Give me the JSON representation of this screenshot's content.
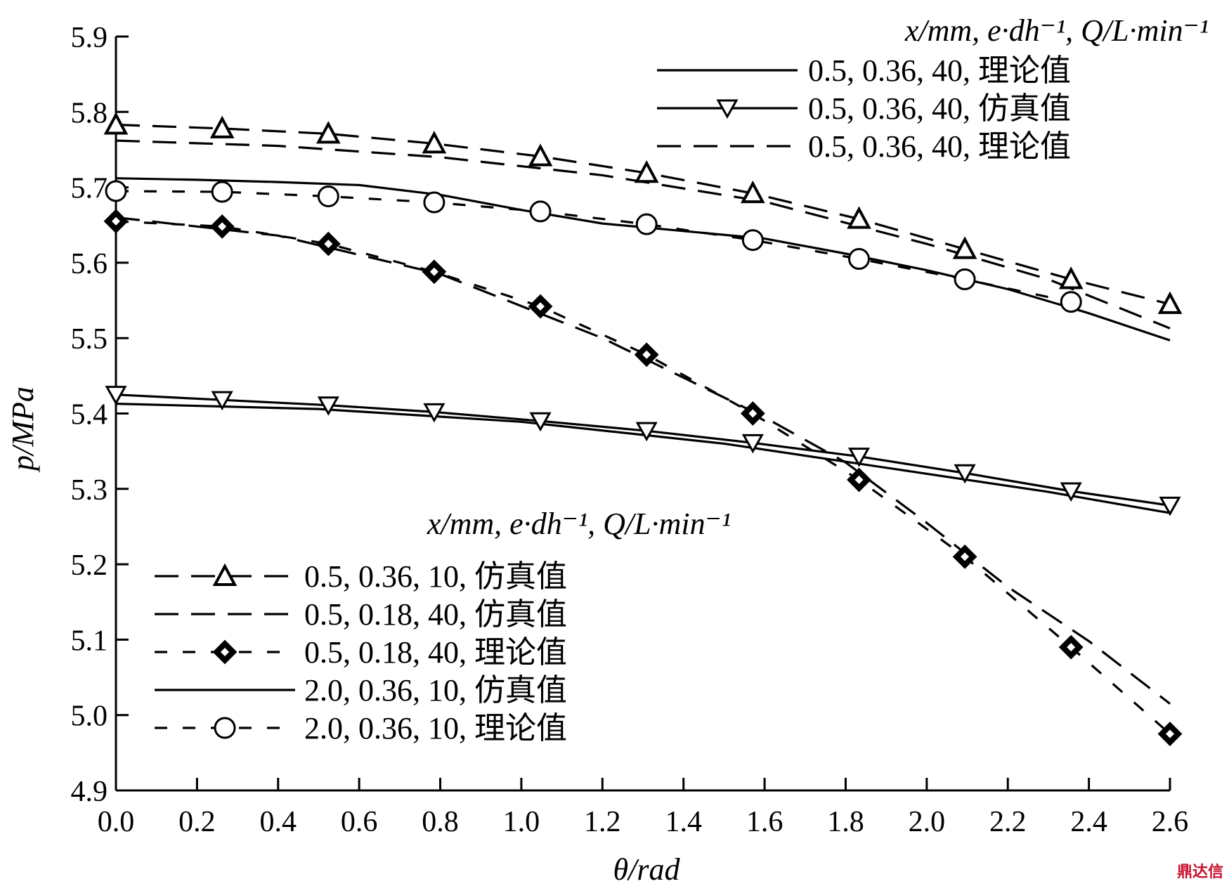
{
  "chart_data": {
    "type": "line",
    "xlabel": "θ/rad",
    "ylabel": "p/MPa",
    "xlim": [
      0.0,
      2.6
    ],
    "ylim": [
      4.9,
      5.9
    ],
    "xticks": [
      "0.0",
      "0.2",
      "0.4",
      "0.6",
      "0.8",
      "1.0",
      "1.2",
      "1.4",
      "1.6",
      "1.8",
      "2.0",
      "2.2",
      "2.4",
      "2.6"
    ],
    "yticks": [
      "4.9",
      "5.0",
      "5.1",
      "5.2",
      "5.3",
      "5.4",
      "5.5",
      "5.6",
      "5.7",
      "5.8",
      "5.9"
    ],
    "grid": false,
    "legend_header": "x/mm, e·dh⁻¹, Q/L·min⁻¹",
    "legends": [
      {
        "placement": "top-right",
        "header": "x/mm, e·dh⁻¹, Q/L·min⁻¹",
        "entries": [
          {
            "series": 0,
            "label": "0.5, 0.36, 40, 理论值"
          },
          {
            "series": 1,
            "label": "0.5, 0.36, 40, 仿真值"
          },
          {
            "series": 2,
            "label": "0.5, 0.36, 40, 理论值"
          }
        ]
      },
      {
        "placement": "bottom-left",
        "header": "x/mm, e·dh⁻¹, Q/L·min⁻¹",
        "entries": [
          {
            "series": 3,
            "label": "0.5, 0.36, 10, 仿真值"
          },
          {
            "series": 4,
            "label": "0.5, 0.18, 40, 仿真值"
          },
          {
            "series": 5,
            "label": "0.5, 0.18, 40, 理论值"
          },
          {
            "series": 6,
            "label": "2.0, 0.36, 10, 仿真值"
          },
          {
            "series": 7,
            "label": "2.0, 0.36, 10, 理论值"
          }
        ]
      }
    ],
    "series": [
      {
        "name": "0.5, 0.36, 40, 理论值",
        "style": "solid",
        "marker": "none",
        "x": [
          0.0,
          0.5,
          1.0,
          1.5,
          2.0,
          2.3,
          2.6
        ],
        "y": [
          5.413,
          5.406,
          5.389,
          5.36,
          5.32,
          5.296,
          5.268
        ]
      },
      {
        "name": "0.5, 0.36, 40, 仿真值",
        "style": "solid",
        "marker": "triangle-down",
        "x": [
          0.0,
          0.262,
          0.524,
          0.785,
          1.047,
          1.309,
          1.571,
          1.833,
          2.094,
          2.356,
          2.6
        ],
        "y": [
          5.425,
          5.418,
          5.411,
          5.402,
          5.39,
          5.377,
          5.361,
          5.343,
          5.321,
          5.297,
          5.278
        ]
      },
      {
        "name": "0.5, 0.36, 40, 理论值",
        "style": "longdash",
        "marker": "none",
        "x": [
          0.0,
          0.4,
          0.8,
          1.2,
          1.6,
          2.0,
          2.3,
          2.6
        ],
        "y": [
          5.762,
          5.755,
          5.74,
          5.716,
          5.681,
          5.625,
          5.578,
          5.513
        ]
      },
      {
        "name": "0.5, 0.36, 10, 仿真值",
        "style": "longdash",
        "marker": "triangle-up",
        "x": [
          0.0,
          0.262,
          0.524,
          0.785,
          1.047,
          1.309,
          1.571,
          1.833,
          2.094,
          2.356,
          2.6
        ],
        "y": [
          5.783,
          5.778,
          5.771,
          5.758,
          5.741,
          5.719,
          5.692,
          5.658,
          5.618,
          5.578,
          5.545
        ]
      },
      {
        "name": "0.5, 0.18, 40, 仿真值",
        "style": "longdash",
        "marker": "none",
        "x": [
          0.0,
          0.4,
          0.8,
          1.2,
          1.6,
          1.8,
          2.0,
          2.2,
          2.4,
          2.6
        ],
        "y": [
          5.66,
          5.636,
          5.585,
          5.5,
          5.395,
          5.335,
          5.255,
          5.17,
          5.098,
          5.015
        ]
      },
      {
        "name": "0.5, 0.18, 40, 理论值",
        "style": "dash",
        "marker": "diamond",
        "x": [
          0.0,
          0.262,
          0.524,
          0.785,
          1.047,
          1.309,
          1.571,
          1.833,
          2.094,
          2.356,
          2.6
        ],
        "y": [
          5.655,
          5.648,
          5.625,
          5.588,
          5.542,
          5.478,
          5.4,
          5.312,
          5.21,
          5.09,
          4.975
        ]
      },
      {
        "name": "2.0, 0.36, 10, 仿真值",
        "style": "solid",
        "marker": "none",
        "x": [
          0.0,
          0.2,
          0.4,
          0.6,
          0.8,
          1.0,
          1.2,
          1.4,
          1.6,
          1.8,
          2.0,
          2.2,
          2.4,
          2.6
        ],
        "y": [
          5.712,
          5.71,
          5.707,
          5.703,
          5.69,
          5.67,
          5.652,
          5.642,
          5.632,
          5.612,
          5.59,
          5.565,
          5.533,
          5.497
        ]
      },
      {
        "name": "2.0, 0.36, 10, 理论值",
        "style": "dash",
        "marker": "circle",
        "x": [
          0.0,
          0.262,
          0.524,
          0.785,
          1.047,
          1.309,
          1.571,
          1.833,
          2.094,
          2.356
        ],
        "y": [
          5.695,
          5.694,
          5.688,
          5.68,
          5.668,
          5.651,
          5.63,
          5.605,
          5.578,
          5.548
        ]
      }
    ]
  },
  "watermark": "鼎达信"
}
